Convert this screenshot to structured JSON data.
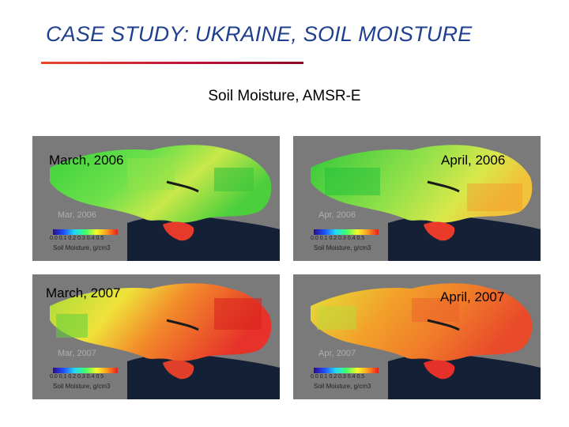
{
  "slide": {
    "title": "CASE STUDY: UKRAINE, SOIL MOISTURE",
    "subtitle": "Soil Moisture, AMSR-E",
    "accent_color": "#c0123b",
    "title_color": "#1f3f8f"
  },
  "panels": [
    {
      "label": "March, 2006",
      "watermark": "Mar, 2006",
      "colorbar_label": "Soil Moisture, g/cm3",
      "ticks": [
        "0.0",
        "0.1",
        "0.2",
        "0.3",
        "0.4",
        "0.5"
      ],
      "moisture": "wet"
    },
    {
      "label": "April, 2006",
      "watermark": "Apr, 2006",
      "colorbar_label": "Soil Moisture, g/cm3",
      "ticks": [
        "0.0",
        "0.1",
        "0.2",
        "0.3",
        "0.4",
        "0.5"
      ],
      "moisture": "wet"
    },
    {
      "label": "March, 2007",
      "watermark": "Mar, 2007",
      "colorbar_label": "Soil Moisture, g/cm3",
      "ticks": [
        "0.0",
        "0.1",
        "0.2",
        "0.3",
        "0.4",
        "0.5"
      ],
      "moisture": "dry"
    },
    {
      "label": "April, 2007",
      "watermark": "Apr, 2007",
      "colorbar_label": "Soil Moisture, g/cm3",
      "ticks": [
        "0.0",
        "0.1",
        "0.2",
        "0.3",
        "0.4",
        "0.5"
      ],
      "moisture": "dry"
    }
  ],
  "colorbar_colors": [
    "#2b0c8a",
    "#1f4fff",
    "#1fd7ff",
    "#3bff6a",
    "#f3ff2b",
    "#ff9a1f",
    "#e61e1e"
  ],
  "sea_color": "#142036",
  "land_gray": "#7a7a7a"
}
